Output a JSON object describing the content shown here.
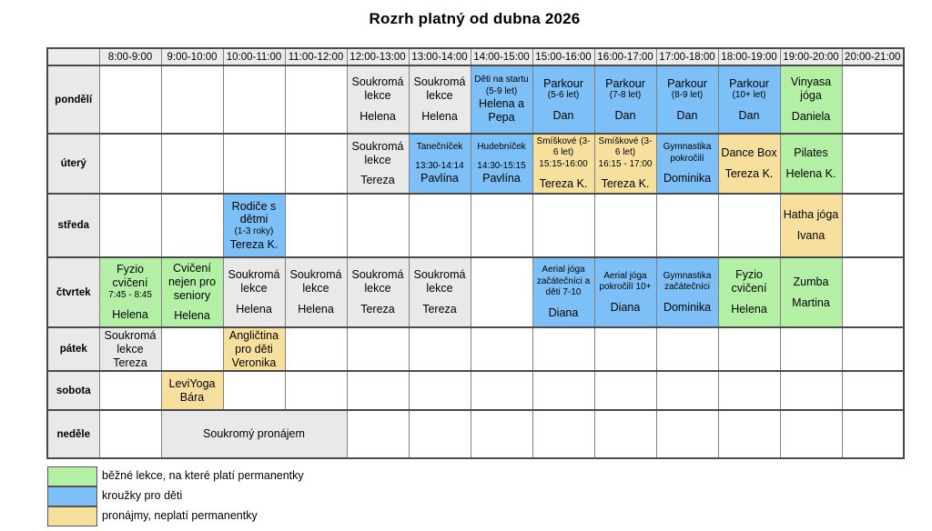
{
  "title": "Rozrh platný od dubna 2026",
  "colors": {
    "green": "#b3f0a5",
    "blue": "#7dc0f7",
    "yellow": "#f7e09e",
    "grey": "#e9e9e9",
    "header_bg": "#ebebeb"
  },
  "schedule": {
    "time_headers": [
      "8:00-9:00",
      "9:00-10:00",
      "10:00-11:00",
      "11:00-12:00",
      "12:00-13:00",
      "13:00-14:00",
      "14:00-15:00",
      "15:00-16:00",
      "16:00-17:00",
      "17:00-18:00",
      "18:00-19:00",
      "19:00-20:00",
      "20:00-21:00"
    ],
    "days": [
      {
        "label": "pondělí",
        "height": 75,
        "cells": [
          {
            "col": 4,
            "span": 1,
            "type": "grey",
            "lines": [
              {
                "text": "Soukromá lekce"
              },
              {
                "spacer": true
              },
              {
                "text": "Helena"
              }
            ]
          },
          {
            "col": 5,
            "span": 1,
            "type": "grey",
            "lines": [
              {
                "text": "Soukromá lekce"
              },
              {
                "spacer": true
              },
              {
                "text": "Helena"
              }
            ]
          },
          {
            "col": 6,
            "span": 1,
            "type": "blue",
            "lines": [
              {
                "text": "Děti na startu (5-9 let)",
                "small": true
              },
              {
                "text": "Helena a Pepa"
              }
            ]
          },
          {
            "col": 7,
            "span": 1,
            "type": "blue",
            "lines": [
              {
                "text": "Parkour"
              },
              {
                "text": "(5-6 let)",
                "small": true
              },
              {
                "spacer": true
              },
              {
                "text": "Dan"
              }
            ]
          },
          {
            "col": 8,
            "span": 1,
            "type": "blue",
            "lines": [
              {
                "text": "Parkour"
              },
              {
                "text": "(7-8 let)",
                "small": true
              },
              {
                "spacer": true
              },
              {
                "text": "Dan"
              }
            ]
          },
          {
            "col": 9,
            "span": 1,
            "type": "blue",
            "lines": [
              {
                "text": "Parkour"
              },
              {
                "text": "(8-9 let)",
                "small": true
              },
              {
                "spacer": true
              },
              {
                "text": "Dan"
              }
            ]
          },
          {
            "col": 10,
            "span": 1,
            "type": "blue",
            "lines": [
              {
                "text": "Parkour"
              },
              {
                "text": "(10+ let)",
                "small": true
              },
              {
                "spacer": true
              },
              {
                "text": "Dan"
              }
            ]
          },
          {
            "col": 11,
            "span": 1,
            "type": "green",
            "lines": [
              {
                "text": "Vinyasa jóga"
              },
              {
                "spacer": true
              },
              {
                "text": "Daniela"
              }
            ]
          }
        ]
      },
      {
        "label": "úterý",
        "height": 66,
        "cells": [
          {
            "col": 4,
            "span": 1,
            "type": "grey",
            "lines": [
              {
                "text": "Soukromá lekce"
              },
              {
                "spacer": true
              },
              {
                "text": "Tereza"
              }
            ]
          },
          {
            "col": 5,
            "span": 1,
            "type": "blue",
            "lines": [
              {
                "text": "Tanečníček",
                "small": true
              },
              {
                "spacer": true
              },
              {
                "text": "13:30-14:14",
                "small": true
              },
              {
                "text": "Pavlína"
              }
            ]
          },
          {
            "col": 6,
            "span": 1,
            "type": "blue",
            "lines": [
              {
                "text": "Hudebníček",
                "small": true
              },
              {
                "spacer": true
              },
              {
                "text": "14:30-15:15",
                "small": true
              },
              {
                "text": "Pavlína"
              }
            ]
          },
          {
            "col": 7,
            "span": 1,
            "type": "yellow",
            "lines": [
              {
                "text": "Smíškové (3-6 let)",
                "small": true
              },
              {
                "text": "15:15-16:00",
                "small": true
              },
              {
                "spacer": true
              },
              {
                "text": "Tereza K."
              }
            ]
          },
          {
            "col": 8,
            "span": 1,
            "type": "yellow",
            "lines": [
              {
                "text": "Smíškové (3-6 let)",
                "small": true
              },
              {
                "text": "16:15 - 17:00",
                "small": true
              },
              {
                "spacer": true
              },
              {
                "text": "Tereza K."
              }
            ]
          },
          {
            "col": 9,
            "span": 1,
            "type": "blue",
            "lines": [
              {
                "text": "Gymnastika pokročilí",
                "small": true
              },
              {
                "spacer": true
              },
              {
                "text": "Dominika"
              }
            ]
          },
          {
            "col": 10,
            "span": 1,
            "type": "yellow",
            "lines": [
              {
                "text": "Dance Box"
              },
              {
                "spacer": true
              },
              {
                "text": "Tereza K."
              }
            ]
          },
          {
            "col": 11,
            "span": 1,
            "type": "green",
            "lines": [
              {
                "text": "Pilates"
              },
              {
                "spacer": true
              },
              {
                "text": "Helena K."
              }
            ]
          }
        ]
      },
      {
        "label": "středa",
        "height": 70,
        "cells": [
          {
            "col": 2,
            "span": 1,
            "type": "blue",
            "lines": [
              {
                "text": "Rodiče s dětmi"
              },
              {
                "text": "(1-3 roky)",
                "small": true
              },
              {
                "text": "Tereza K."
              }
            ]
          },
          {
            "col": 11,
            "span": 1,
            "type": "yellow",
            "lines": [
              {
                "text": "Hatha jóga"
              },
              {
                "spacer": true
              },
              {
                "text": "Ivana"
              }
            ]
          }
        ]
      },
      {
        "label": "čtvrtek",
        "height": 77,
        "cells": [
          {
            "col": 0,
            "span": 1,
            "type": "green",
            "lines": [
              {
                "text": "Fyzio cvičení"
              },
              {
                "text": "7:45 - 8:45",
                "small": true
              },
              {
                "spacer": true
              },
              {
                "text": "Helena"
              }
            ]
          },
          {
            "col": 1,
            "span": 1,
            "type": "green",
            "lines": [
              {
                "text": "Cvičení nejen pro seniory"
              },
              {
                "spacer": true
              },
              {
                "text": "Helena"
              }
            ]
          },
          {
            "col": 2,
            "span": 1,
            "type": "grey",
            "lines": [
              {
                "text": "Soukromá lekce"
              },
              {
                "spacer": true
              },
              {
                "text": "Helena"
              }
            ]
          },
          {
            "col": 3,
            "span": 1,
            "type": "grey",
            "lines": [
              {
                "text": "Soukromá lekce"
              },
              {
                "spacer": true
              },
              {
                "text": "Helena"
              }
            ]
          },
          {
            "col": 4,
            "span": 1,
            "type": "grey",
            "lines": [
              {
                "text": "Soukromá lekce"
              },
              {
                "spacer": true
              },
              {
                "text": "Tereza"
              }
            ]
          },
          {
            "col": 5,
            "span": 1,
            "type": "grey",
            "lines": [
              {
                "text": "Soukromá lekce"
              },
              {
                "spacer": true
              },
              {
                "text": "Tereza"
              }
            ]
          },
          {
            "col": 7,
            "span": 1,
            "type": "blue",
            "lines": [
              {
                "text": "Aerial jóga začátečníci a děti 7-10",
                "small": true
              },
              {
                "spacer": true
              },
              {
                "text": "Diana"
              }
            ]
          },
          {
            "col": 8,
            "span": 1,
            "type": "blue",
            "lines": [
              {
                "text": "Aerial jóga pokročilí 10+",
                "small": true
              },
              {
                "spacer": true
              },
              {
                "text": "Diana"
              }
            ]
          },
          {
            "col": 9,
            "span": 1,
            "type": "blue",
            "lines": [
              {
                "text": "Gymnastika začátečníci",
                "small": true
              },
              {
                "spacer": true
              },
              {
                "text": "Dominika"
              }
            ]
          },
          {
            "col": 10,
            "span": 1,
            "type": "green",
            "lines": [
              {
                "text": "Fyzio cvičení"
              },
              {
                "spacer": true
              },
              {
                "text": "Helena"
              }
            ]
          },
          {
            "col": 11,
            "span": 1,
            "type": "green",
            "lines": [
              {
                "text": "Zumba"
              },
              {
                "spacer": true
              },
              {
                "text": "Martina"
              }
            ]
          }
        ]
      },
      {
        "label": "pátek",
        "height": 43,
        "cells": [
          {
            "col": 0,
            "span": 1,
            "type": "grey",
            "lines": [
              {
                "text": "Soukromá lekce"
              },
              {
                "text": "Tereza"
              }
            ]
          },
          {
            "col": 2,
            "span": 1,
            "type": "yellow",
            "lines": [
              {
                "text": "Angličtina pro děti"
              },
              {
                "text": "Veronika"
              }
            ]
          }
        ]
      },
      {
        "label": "sobota",
        "height": 43,
        "cells": [
          {
            "col": 1,
            "span": 1,
            "type": "yellow",
            "lines": [
              {
                "text": "LeviYoga"
              },
              {
                "text": "Bára"
              }
            ]
          }
        ]
      },
      {
        "label": "neděle",
        "height": 53,
        "cells": [
          {
            "col": 1,
            "span": 3,
            "type": "grey",
            "lines": [
              {
                "text": "Soukromý pronájem"
              }
            ]
          }
        ]
      }
    ]
  },
  "legend": [
    {
      "color": "green",
      "label": "běžné lekce, na které platí permanentky"
    },
    {
      "color": "blue",
      "label": "kroužky pro děti"
    },
    {
      "color": "yellow",
      "label": "pronájmy, neplatí permanentky"
    }
  ]
}
